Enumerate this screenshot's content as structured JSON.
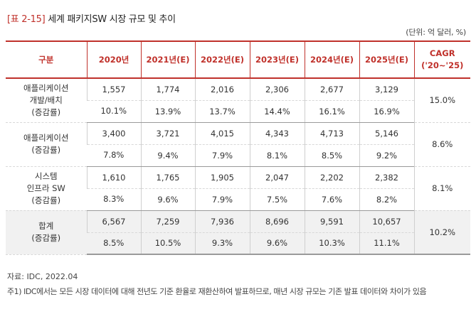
{
  "title": {
    "tag": "[표 2-15]",
    "text": "세계 패키지SW 시장 규모 및 추이"
  },
  "unit": "(단위: 억 달러, %)",
  "table": {
    "headers": [
      "구분",
      "2020년",
      "2021년(E)",
      "2022년(E)",
      "2023년(E)",
      "2024년(E)",
      "2025년(E)",
      "CAGR",
      "('20~'25)"
    ],
    "groups": [
      {
        "label_lines": [
          "애플리케이션",
          "개발/배치",
          "(증감률)"
        ],
        "values": [
          "1,557",
          "1,774",
          "2,016",
          "2,306",
          "2,677",
          "3,129"
        ],
        "growth": [
          "10.1%",
          "13.9%",
          "13.7%",
          "14.4%",
          "16.1%",
          "16.9%"
        ],
        "cagr": "15.0%"
      },
      {
        "label_lines": [
          "애플리케이션",
          "(증감률)"
        ],
        "values": [
          "3,400",
          "3,721",
          "4,015",
          "4,343",
          "4,713",
          "5,146"
        ],
        "growth": [
          "7.8%",
          "9.4%",
          "7.9%",
          "8.1%",
          "8.5%",
          "9.2%"
        ],
        "cagr": "8.6%"
      },
      {
        "label_lines": [
          "시스템",
          "인프라 SW",
          "(증감률)"
        ],
        "values": [
          "1,610",
          "1,765",
          "1,905",
          "2,047",
          "2,202",
          "2,382"
        ],
        "growth": [
          "8.3%",
          "9.6%",
          "7.9%",
          "7.5%",
          "7.6%",
          "8.2%"
        ],
        "cagr": "8.1%"
      },
      {
        "label_lines": [
          "합계",
          "(증감률)"
        ],
        "values": [
          "6,567",
          "7,259",
          "7,936",
          "8,696",
          "9,591",
          "10,657"
        ],
        "growth": [
          "8.5%",
          "10.5%",
          "9.3%",
          "9.6%",
          "10.3%",
          "11.1%"
        ],
        "cagr": "10.2%"
      }
    ]
  },
  "source": "자료: IDC, 2022.04",
  "note": "주1) IDC에서는 모든 시장 데이터에 대해 전년도 기준 환율로 재환산하여 발표하므로, 매년 시장 규모는 기존 발표 데이터와 차이가 있음"
}
